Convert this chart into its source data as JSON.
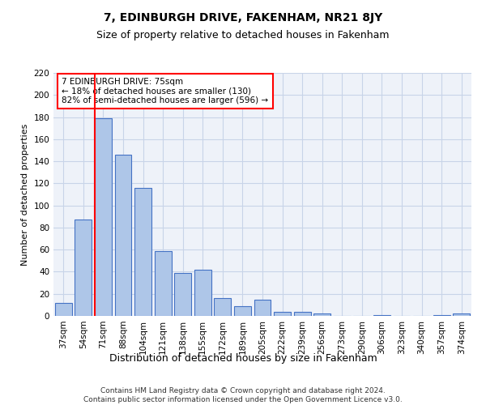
{
  "title": "7, EDINBURGH DRIVE, FAKENHAM, NR21 8JY",
  "subtitle": "Size of property relative to detached houses in Fakenham",
  "xlabel": "Distribution of detached houses by size in Fakenham",
  "ylabel": "Number of detached properties",
  "categories": [
    "37sqm",
    "54sqm",
    "71sqm",
    "88sqm",
    "104sqm",
    "121sqm",
    "138sqm",
    "155sqm",
    "172sqm",
    "189sqm",
    "205sqm",
    "222sqm",
    "239sqm",
    "256sqm",
    "273sqm",
    "290sqm",
    "306sqm",
    "323sqm",
    "340sqm",
    "357sqm",
    "374sqm"
  ],
  "values": [
    12,
    87,
    179,
    146,
    116,
    59,
    39,
    42,
    16,
    9,
    15,
    4,
    4,
    2,
    0,
    0,
    1,
    0,
    0,
    1,
    2
  ],
  "bar_color": "#aec6e8",
  "bar_edge_color": "#4472c4",
  "red_line_index": 2,
  "annotation_text": "7 EDINBURGH DRIVE: 75sqm\n← 18% of detached houses are smaller (130)\n82% of semi-detached houses are larger (596) →",
  "annotation_box_color": "white",
  "annotation_box_edge_color": "red",
  "ylim": [
    0,
    220
  ],
  "yticks": [
    0,
    20,
    40,
    60,
    80,
    100,
    120,
    140,
    160,
    180,
    200,
    220
  ],
  "footer_line1": "Contains HM Land Registry data © Crown copyright and database right 2024.",
  "footer_line2": "Contains public sector information licensed under the Open Government Licence v3.0.",
  "background_color": "#eef2f9",
  "grid_color": "#c8d4e8",
  "title_fontsize": 10,
  "subtitle_fontsize": 9,
  "ylabel_fontsize": 8,
  "xlabel_fontsize": 9,
  "tick_fontsize": 7.5,
  "footer_fontsize": 6.5
}
